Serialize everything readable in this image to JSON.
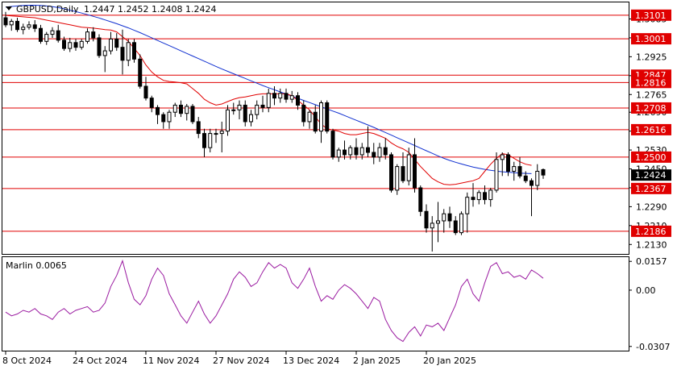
{
  "header": {
    "symbol": "GBPUSD,Daily",
    "ohlc": "1.2447 1.2452 1.2408 1.2424"
  },
  "colors": {
    "bull": "#ffffff",
    "bear": "#000000",
    "ma_fast": "#e00000",
    "ma_slow": "#1030d0",
    "level": "#e00000",
    "marlin": "#9a1aa0",
    "price_tag": "#000000"
  },
  "chart_data": [
    {
      "type": "candlestick",
      "title": "GBPUSD,Daily",
      "ylim": [
        1.209,
        1.3155
      ],
      "y_ticks": [
        "1.3085",
        "1.3005",
        "1.2925",
        "1.2845",
        "1.2765",
        "1.2690",
        "1.2610",
        "1.2530",
        "1.2450",
        "1.2370",
        "1.2290",
        "1.2210",
        "1.2130"
      ],
      "x_labels": [
        {
          "label": "8 Oct 2024",
          "index": 0
        },
        {
          "label": "24 Oct 2024",
          "index": 12
        },
        {
          "label": "11 Nov 2024",
          "index": 24
        },
        {
          "label": "27 Nov 2024",
          "index": 36
        },
        {
          "label": "13 Dec 2024",
          "index": 48
        },
        {
          "label": "2 Jan 2025",
          "index": 60
        },
        {
          "label": "20 Jan 2025",
          "index": 72
        }
      ],
      "levels": [
        1.3101,
        1.3001,
        1.2847,
        1.2816,
        1.2708,
        1.2616,
        1.25,
        1.2367,
        1.2186
      ],
      "level_labels": [
        "1.3101",
        "1.3001",
        "1.2847",
        "1.2816",
        "1.2708",
        "1.2616",
        "1.2500",
        "1.2367",
        "1.2186"
      ],
      "current_price": "1.2424",
      "candles": [
        [
          1.309,
          1.3115,
          1.305,
          1.306
        ],
        [
          1.306,
          1.3085,
          1.3035,
          1.3075
        ],
        [
          1.3075,
          1.309,
          1.303,
          1.304
        ],
        [
          1.304,
          1.3065,
          1.302,
          1.305
        ],
        [
          1.305,
          1.3075,
          1.304,
          1.306
        ],
        [
          1.306,
          1.308,
          1.303,
          1.3045
        ],
        [
          1.3045,
          1.306,
          1.298,
          1.299
        ],
        [
          1.299,
          1.303,
          1.2975,
          1.302
        ],
        [
          1.302,
          1.305,
          1.3005,
          1.3035
        ],
        [
          1.3035,
          1.306,
          1.2985,
          1.2995
        ],
        [
          1.2995,
          1.301,
          1.295,
          1.296
        ],
        [
          1.296,
          1.3005,
          1.2945,
          1.2985
        ],
        [
          1.2985,
          1.3,
          1.295,
          1.2965
        ],
        [
          1.2965,
          1.3,
          1.2955,
          1.299
        ],
        [
          1.299,
          1.3045,
          1.298,
          1.303
        ],
        [
          1.303,
          1.305,
          1.299,
          1.3005
        ],
        [
          1.3005,
          1.302,
          1.292,
          1.293
        ],
        [
          1.293,
          1.297,
          1.286,
          1.295
        ],
        [
          1.295,
          1.303,
          1.2935,
          1.3
        ],
        [
          1.3,
          1.3025,
          1.295,
          1.2965
        ],
        [
          1.2965,
          1.304,
          1.285,
          1.291
        ],
        [
          1.291,
          1.3,
          1.2885,
          1.2985
        ],
        [
          1.2985,
          1.3,
          1.29,
          1.2915
        ],
        [
          1.2915,
          1.2935,
          1.279,
          1.28
        ],
        [
          1.28,
          1.284,
          1.274,
          1.275
        ],
        [
          1.275,
          1.276,
          1.269,
          1.271
        ],
        [
          1.271,
          1.272,
          1.264,
          1.268
        ],
        [
          1.268,
          1.269,
          1.262,
          1.265
        ],
        [
          1.265,
          1.27,
          1.262,
          1.269
        ],
        [
          1.269,
          1.273,
          1.267,
          1.272
        ],
        [
          1.272,
          1.274,
          1.267,
          1.2685
        ],
        [
          1.2685,
          1.2725,
          1.2655,
          1.2715
        ],
        [
          1.2715,
          1.2725,
          1.264,
          1.265
        ],
        [
          1.265,
          1.267,
          1.258,
          1.26
        ],
        [
          1.26,
          1.262,
          1.25,
          1.254
        ],
        [
          1.254,
          1.262,
          1.252,
          1.26
        ],
        [
          1.26,
          1.262,
          1.256,
          1.26
        ],
        [
          1.26,
          1.265,
          1.252,
          1.261
        ],
        [
          1.261,
          1.272,
          1.259,
          1.27
        ],
        [
          1.27,
          1.273,
          1.268,
          1.27
        ],
        [
          1.27,
          1.274,
          1.266,
          1.272
        ],
        [
          1.272,
          1.274,
          1.263,
          1.265
        ],
        [
          1.265,
          1.27,
          1.263,
          1.268
        ],
        [
          1.268,
          1.274,
          1.266,
          1.272
        ],
        [
          1.272,
          1.276,
          1.269,
          1.271
        ],
        [
          1.271,
          1.279,
          1.269,
          1.277
        ],
        [
          1.277,
          1.28,
          1.272,
          1.275
        ],
        [
          1.275,
          1.279,
          1.273,
          1.277
        ],
        [
          1.277,
          1.279,
          1.273,
          1.2745
        ],
        [
          1.2745,
          1.278,
          1.273,
          1.276
        ],
        [
          1.276,
          1.2775,
          1.27,
          1.272
        ],
        [
          1.272,
          1.274,
          1.263,
          1.265
        ],
        [
          1.265,
          1.27,
          1.262,
          1.269
        ],
        [
          1.269,
          1.272,
          1.26,
          1.261
        ],
        [
          1.261,
          1.274,
          1.256,
          1.273
        ],
        [
          1.273,
          1.274,
          1.26,
          1.261
        ],
        [
          1.261,
          1.262,
          1.249,
          1.25
        ],
        [
          1.25,
          1.254,
          1.248,
          1.253
        ],
        [
          1.253,
          1.257,
          1.249,
          1.251
        ],
        [
          1.251,
          1.255,
          1.249,
          1.254
        ],
        [
          1.254,
          1.258,
          1.249,
          1.251
        ],
        [
          1.251,
          1.256,
          1.249,
          1.254
        ],
        [
          1.254,
          1.263,
          1.25,
          1.252
        ],
        [
          1.252,
          1.256,
          1.247,
          1.25
        ],
        [
          1.25,
          1.256,
          1.248,
          1.254
        ],
        [
          1.254,
          1.258,
          1.249,
          1.251
        ],
        [
          1.251,
          1.252,
          1.235,
          1.236
        ],
        [
          1.236,
          1.247,
          1.234,
          1.246
        ],
        [
          1.246,
          1.252,
          1.239,
          1.24
        ],
        [
          1.24,
          1.254,
          1.238,
          1.251
        ],
        [
          1.251,
          1.258,
          1.235,
          1.237
        ],
        [
          1.237,
          1.238,
          1.225,
          1.227
        ],
        [
          1.227,
          1.23,
          1.218,
          1.22
        ],
        [
          1.22,
          1.225,
          1.21,
          1.222
        ],
        [
          1.222,
          1.231,
          1.214,
          1.223
        ],
        [
          1.223,
          1.228,
          1.218,
          1.226
        ],
        [
          1.226,
          1.229,
          1.22,
          1.223
        ],
        [
          1.223,
          1.225,
          1.217,
          1.218
        ],
        [
          1.218,
          1.227,
          1.217,
          1.226
        ],
        [
          1.226,
          1.235,
          1.218,
          1.233
        ],
        [
          1.233,
          1.239,
          1.229,
          1.232
        ],
        [
          1.232,
          1.236,
          1.23,
          1.235
        ],
        [
          1.235,
          1.238,
          1.23,
          1.232
        ],
        [
          1.232,
          1.237,
          1.229,
          1.236
        ],
        [
          1.236,
          1.252,
          1.235,
          1.249
        ],
        [
          1.249,
          1.252,
          1.242,
          1.251
        ],
        [
          1.251,
          1.252,
          1.242,
          1.244
        ],
        [
          1.244,
          1.248,
          1.24,
          1.246
        ],
        [
          1.246,
          1.25,
          1.241,
          1.242
        ],
        [
          1.242,
          1.244,
          1.239,
          1.24
        ],
        [
          1.24,
          1.241,
          1.225,
          1.238
        ],
        [
          1.238,
          1.247,
          1.236,
          1.244
        ],
        [
          1.2447,
          1.2452,
          1.2408,
          1.2424
        ]
      ],
      "ma_fast": [
        1.31,
        1.3098,
        1.3096,
        1.3094,
        1.3092,
        1.309,
        1.3085,
        1.308,
        1.3075,
        1.307,
        1.3065,
        1.306,
        1.3055,
        1.305,
        1.3048,
        1.3046,
        1.3043,
        1.304,
        1.3038,
        1.303,
        1.301,
        1.299,
        1.296,
        1.293,
        1.289,
        1.286,
        1.284,
        1.2825,
        1.282,
        1.2818,
        1.2815,
        1.281,
        1.279,
        1.277,
        1.2745,
        1.273,
        1.272,
        1.2725,
        1.2735,
        1.2745,
        1.2752,
        1.2755,
        1.276,
        1.2765,
        1.2768,
        1.2768,
        1.2768,
        1.2768,
        1.2768,
        1.276,
        1.274,
        1.272,
        1.27,
        1.267,
        1.264,
        1.262,
        1.2615,
        1.261,
        1.26,
        1.2595,
        1.2595,
        1.26,
        1.2605,
        1.26,
        1.259,
        1.258,
        1.256,
        1.2545,
        1.2535,
        1.252,
        1.249,
        1.246,
        1.2435,
        1.241,
        1.2395,
        1.2385,
        1.2383,
        1.2385,
        1.239,
        1.2395,
        1.24,
        1.241,
        1.244,
        1.247,
        1.2495,
        1.2515,
        1.251,
        1.2495,
        1.248,
        1.247,
        1.2465
      ],
      "ma_slow": [
        1.3135,
        1.3138,
        1.314,
        1.3142,
        1.3143,
        1.3143,
        1.3142,
        1.314,
        1.3137,
        1.3133,
        1.3128,
        1.3122,
        1.3116,
        1.311,
        1.3103,
        1.3096,
        1.3089,
        1.3081,
        1.3073,
        1.3065,
        1.3056,
        1.3047,
        1.3037,
        1.3027,
        1.3016,
        1.3005,
        1.2994,
        1.2983,
        1.2972,
        1.2961,
        1.295,
        1.2939,
        1.2928,
        1.2917,
        1.2906,
        1.2895,
        1.2884,
        1.2873,
        1.2863,
        1.2853,
        1.2843,
        1.2833,
        1.2823,
        1.2813,
        1.2803,
        1.2794,
        1.2785,
        1.2776,
        1.2767,
        1.2758,
        1.2749,
        1.274,
        1.2731,
        1.2722,
        1.2713,
        1.2704,
        1.2695,
        1.2686,
        1.2676,
        1.2666,
        1.2656,
        1.2646,
        1.2636,
        1.2626,
        1.2615,
        1.2604,
        1.2593,
        1.2582,
        1.2571,
        1.256,
        1.2549,
        1.2538,
        1.2527,
        1.2516,
        1.2505,
        1.2495,
        1.2486,
        1.2478,
        1.2471,
        1.2464,
        1.2458,
        1.2453,
        1.2448,
        1.2444,
        1.2441,
        1.2438,
        1.2436,
        1.2434,
        1.2432,
        1.2431,
        1.243
      ]
    },
    {
      "type": "line",
      "title": "Marlin 0.0065",
      "label": "Marlin",
      "value": "0.0065",
      "ylim": [
        -0.033,
        0.018
      ],
      "y_ticks": [
        "0.0157",
        "0.00",
        "-0.0307"
      ],
      "values": [
        -0.012,
        -0.014,
        -0.013,
        -0.011,
        -0.012,
        -0.01,
        -0.013,
        -0.014,
        -0.016,
        -0.012,
        -0.01,
        -0.013,
        -0.011,
        -0.01,
        -0.009,
        -0.012,
        -0.011,
        -0.007,
        0.002,
        0.008,
        0.016,
        0.004,
        -0.005,
        -0.008,
        -0.003,
        0.006,
        0.012,
        0.008,
        -0.002,
        -0.008,
        -0.014,
        -0.018,
        -0.012,
        -0.006,
        -0.013,
        -0.018,
        -0.014,
        -0.008,
        -0.002,
        0.006,
        0.01,
        0.007,
        0.002,
        0.004,
        0.01,
        0.015,
        0.012,
        0.014,
        0.012,
        0.004,
        0.001,
        0.006,
        0.012,
        0.002,
        -0.006,
        -0.003,
        -0.005,
        0.0,
        0.003,
        0.001,
        -0.002,
        -0.006,
        -0.01,
        -0.004,
        -0.006,
        -0.016,
        -0.022,
        -0.026,
        -0.028,
        -0.023,
        -0.02,
        -0.025,
        -0.019,
        -0.02,
        -0.018,
        -0.022,
        -0.015,
        -0.008,
        0.002,
        0.006,
        -0.002,
        -0.006,
        0.004,
        0.013,
        0.015,
        0.009,
        0.01,
        0.007,
        0.008,
        0.006,
        0.011,
        0.009,
        0.0065
      ]
    }
  ]
}
